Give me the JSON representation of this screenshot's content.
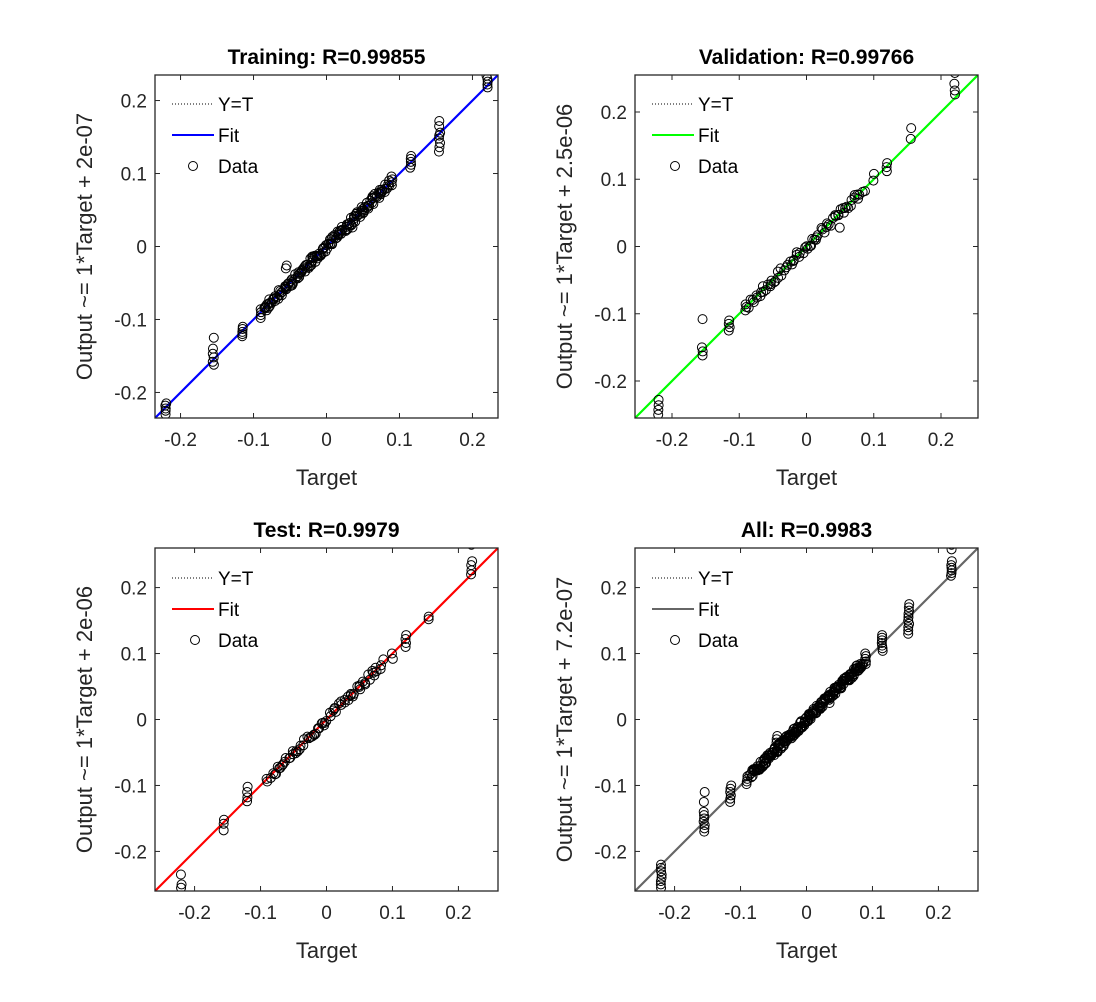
{
  "chart_data": [
    {
      "type": "scatter",
      "title": "Training: R=0.99855",
      "xlabel": "Target",
      "ylabel": "Output ~= 1*Target + 2e-07",
      "xlim": [
        -0.235,
        0.235
      ],
      "ylim": [
        -0.235,
        0.235
      ],
      "xticks": [
        -0.2,
        -0.1,
        0,
        0.1,
        0.2
      ],
      "yticks": [
        -0.2,
        -0.1,
        0,
        0.1,
        0.2
      ],
      "xtick_labels": [
        "-0.2",
        "-0.1",
        "0",
        "0.1",
        "0.2"
      ],
      "ytick_labels": [
        "-0.2",
        "-0.1",
        "0",
        "0.1",
        "0.2"
      ],
      "fit": {
        "slope": 1,
        "intercept": 2e-07,
        "color": "#0000ff"
      },
      "legend": {
        "identity": "Y=T",
        "fit": "Fit",
        "data": "Data"
      },
      "seed": 11,
      "clusters": [
        {
          "x": -0.22,
          "y": [
            -0.23,
            -0.225,
            -0.222,
            -0.218,
            -0.215
          ]
        },
        {
          "x": -0.155,
          "y": [
            -0.162,
            -0.158,
            -0.152,
            -0.147,
            -0.14,
            -0.125
          ]
        },
        {
          "x": -0.115,
          "y": [
            -0.123,
            -0.12,
            -0.117,
            -0.113,
            -0.11
          ]
        },
        {
          "x": -0.09,
          "y": [
            -0.098,
            -0.094,
            -0.09,
            -0.086
          ]
        },
        {
          "x": -0.055,
          "y": [
            -0.03,
            -0.026
          ]
        },
        {
          "x": 0.035,
          "y": [
            0.026,
            0.03
          ]
        },
        {
          "x": 0.09,
          "y": [
            0.084,
            0.088,
            0.092,
            0.096
          ]
        },
        {
          "x": 0.115,
          "y": [
            0.108,
            0.112,
            0.116,
            0.12,
            0.124
          ]
        },
        {
          "x": 0.155,
          "y": [
            0.13,
            0.136,
            0.142,
            0.148,
            0.152,
            0.156,
            0.165,
            0.172
          ]
        },
        {
          "x": 0.22,
          "y": [
            0.218,
            0.222,
            0.226,
            0.23,
            0.234
          ]
        }
      ],
      "band": {
        "from": -0.085,
        "to": 0.085,
        "count": 160,
        "spread": 0.006
      }
    },
    {
      "type": "scatter",
      "title": "Validation: R=0.99766",
      "xlabel": "Target",
      "ylabel": "Output ~= 1*Target + 2.5e-06",
      "xlim": [
        -0.255,
        0.255
      ],
      "ylim": [
        -0.255,
        0.255
      ],
      "xticks": [
        -0.2,
        -0.1,
        0,
        0.1,
        0.2
      ],
      "yticks": [
        -0.2,
        -0.1,
        0,
        0.1,
        0.2
      ],
      "xtick_labels": [
        "-0.2",
        "-0.1",
        "0",
        "0.1",
        "0.2"
      ],
      "ytick_labels": [
        "-0.2",
        "-0.1",
        "0",
        "0.1",
        "0.2"
      ],
      "fit": {
        "slope": 1,
        "intercept": 2.5e-06,
        "color": "#00ff00"
      },
      "legend": {
        "identity": "Y=T",
        "fit": "Fit",
        "data": "Data"
      },
      "seed": 23,
      "clusters": [
        {
          "x": -0.22,
          "y": [
            -0.25,
            -0.243,
            -0.236,
            -0.228
          ]
        },
        {
          "x": -0.155,
          "y": [
            -0.162,
            -0.156,
            -0.15,
            -0.108
          ]
        },
        {
          "x": -0.115,
          "y": [
            -0.125,
            -0.12,
            -0.115,
            -0.11
          ]
        },
        {
          "x": -0.09,
          "y": [
            -0.095,
            -0.09,
            -0.086
          ]
        },
        {
          "x": 0.05,
          "y": [
            0.028
          ]
        },
        {
          "x": 0.1,
          "y": [
            0.098,
            0.108
          ]
        },
        {
          "x": 0.12,
          "y": [
            0.112,
            0.118,
            0.124
          ]
        },
        {
          "x": 0.155,
          "y": [
            0.16,
            0.176
          ]
        },
        {
          "x": 0.22,
          "y": [
            0.226,
            0.232,
            0.242,
            0.258
          ]
        }
      ],
      "band": {
        "from": -0.085,
        "to": 0.085,
        "count": 70,
        "spread": 0.006
      }
    },
    {
      "type": "scatter",
      "title": "Test: R=0.9979",
      "xlabel": "Target",
      "ylabel": "Output ~= 1*Target + 2e-06",
      "xlim": [
        -0.26,
        0.26
      ],
      "ylim": [
        -0.26,
        0.26
      ],
      "xticks": [
        -0.2,
        -0.1,
        0,
        0.1,
        0.2
      ],
      "yticks": [
        -0.2,
        -0.1,
        0,
        0.1,
        0.2
      ],
      "xtick_labels": [
        "-0.2",
        "-0.1",
        "0",
        "0.1",
        "0.2"
      ],
      "ytick_labels": [
        "-0.2",
        "-0.1",
        "0",
        "0.1",
        "0.2"
      ],
      "fit": {
        "slope": 1,
        "intercept": 2e-06,
        "color": "#ff0000"
      },
      "legend": {
        "identity": "Y=T",
        "fit": "Fit",
        "data": "Data"
      },
      "seed": 37,
      "clusters": [
        {
          "x": -0.22,
          "y": [
            -0.255,
            -0.25,
            -0.235
          ]
        },
        {
          "x": -0.155,
          "y": [
            -0.168,
            -0.158,
            -0.152
          ]
        },
        {
          "x": -0.12,
          "y": [
            -0.124,
            -0.118,
            -0.11,
            -0.102
          ]
        },
        {
          "x": -0.09,
          "y": [
            -0.094,
            -0.09
          ]
        },
        {
          "x": 0.1,
          "y": [
            0.092,
            0.1
          ]
        },
        {
          "x": 0.12,
          "y": [
            0.11,
            0.116,
            0.122,
            0.128
          ]
        },
        {
          "x": 0.155,
          "y": [
            0.152,
            0.156
          ]
        },
        {
          "x": 0.22,
          "y": [
            0.22,
            0.226,
            0.234,
            0.24,
            0.265
          ]
        }
      ],
      "band": {
        "from": -0.085,
        "to": 0.085,
        "count": 70,
        "spread": 0.006
      }
    },
    {
      "type": "scatter",
      "title": "All: R=0.9983",
      "xlabel": "Target",
      "ylabel": "Output ~= 1*Target + 7.2e-07",
      "xlim": [
        -0.26,
        0.26
      ],
      "ylim": [
        -0.26,
        0.26
      ],
      "xticks": [
        -0.2,
        -0.1,
        0,
        0.1,
        0.2
      ],
      "yticks": [
        -0.2,
        -0.1,
        0,
        0.1,
        0.2
      ],
      "xtick_labels": [
        "-0.2",
        "-0.1",
        "0",
        "0.1",
        "0.2"
      ],
      "ytick_labels": [
        "-0.2",
        "-0.1",
        "0",
        "0.1",
        "0.2"
      ],
      "fit": {
        "slope": 1,
        "intercept": 7.2e-07,
        "color": "#666666"
      },
      "legend": {
        "identity": "Y=T",
        "fit": "Fit",
        "data": "Data"
      },
      "seed": 53,
      "clusters": [
        {
          "x": -0.22,
          "y": [
            -0.255,
            -0.25,
            -0.245,
            -0.24,
            -0.235,
            -0.23,
            -0.225,
            -0.22
          ]
        },
        {
          "x": -0.155,
          "y": [
            -0.17,
            -0.165,
            -0.16,
            -0.155,
            -0.15,
            -0.145,
            -0.14,
            -0.125,
            -0.11
          ]
        },
        {
          "x": -0.115,
          "y": [
            -0.125,
            -0.12,
            -0.115,
            -0.11,
            -0.105,
            -0.1
          ]
        },
        {
          "x": -0.09,
          "y": [
            -0.098,
            -0.094,
            -0.09,
            -0.086
          ]
        },
        {
          "x": -0.045,
          "y": [
            -0.035,
            -0.03,
            -0.025
          ]
        },
        {
          "x": 0.035,
          "y": [
            0.025,
            0.03
          ]
        },
        {
          "x": 0.09,
          "y": [
            0.084,
            0.088,
            0.092,
            0.096,
            0.1
          ]
        },
        {
          "x": 0.115,
          "y": [
            0.104,
            0.108,
            0.112,
            0.116,
            0.12,
            0.124,
            0.128
          ]
        },
        {
          "x": 0.155,
          "y": [
            0.13,
            0.135,
            0.14,
            0.145,
            0.15,
            0.155,
            0.16,
            0.165,
            0.17,
            0.175
          ]
        },
        {
          "x": 0.22,
          "y": [
            0.218,
            0.222,
            0.226,
            0.23,
            0.234,
            0.24,
            0.258,
            0.265
          ]
        }
      ],
      "band": {
        "from": -0.085,
        "to": 0.085,
        "count": 220,
        "spread": 0.006
      }
    }
  ]
}
